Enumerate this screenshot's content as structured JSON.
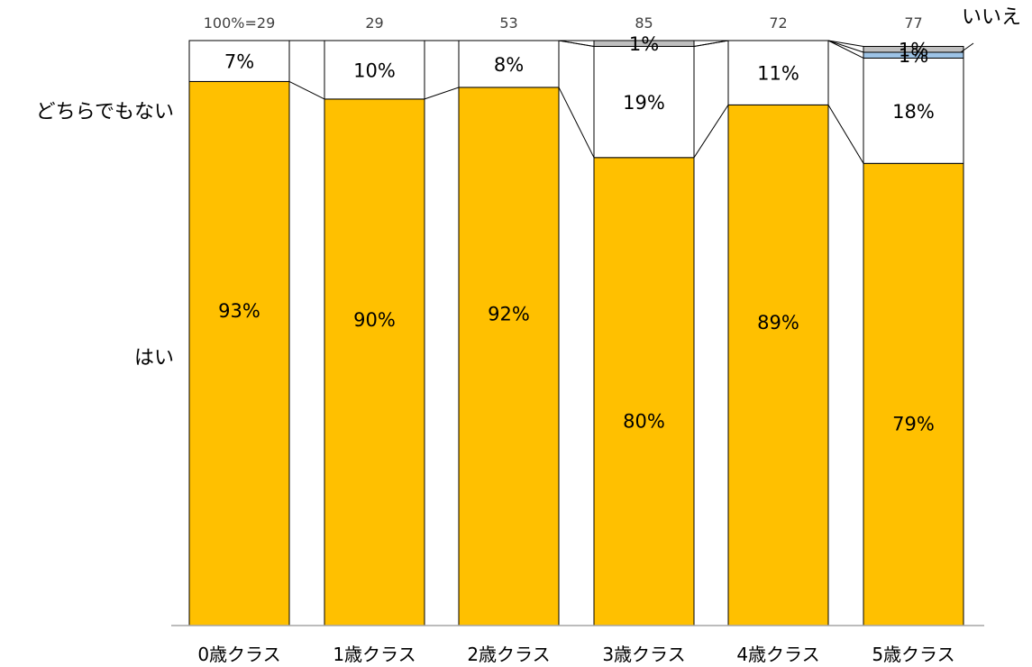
{
  "chart_data": {
    "type": "bar",
    "stacked": true,
    "normalized": true,
    "categories": [
      "0歳クラス",
      "1歳クラス",
      "2歳クラス",
      "3歳クラス",
      "4歳クラス",
      "5歳クラス"
    ],
    "n_labels": [
      "100%=29",
      "29",
      "53",
      "85",
      "72",
      "77"
    ],
    "series": [
      {
        "name": "はい",
        "values": [
          93,
          90,
          92,
          80,
          89,
          79
        ],
        "labels": [
          "93%",
          "90%",
          "92%",
          "80%",
          "89%",
          "79%"
        ],
        "color": "#FFC000"
      },
      {
        "name": "どちらでもない",
        "values": [
          7,
          10,
          8,
          19,
          11,
          18
        ],
        "labels": [
          "7%",
          "10%",
          "8%",
          "19%",
          "11%",
          "18%"
        ],
        "color": "#FFFFFF"
      },
      {
        "name": "",
        "values": [
          0,
          0,
          0,
          0,
          0,
          1
        ],
        "labels": [
          "",
          "",
          "",
          "",
          "",
          "1%"
        ],
        "color": "#9DC3E6"
      },
      {
        "name": "いいえ",
        "values": [
          0,
          0,
          0,
          1,
          0,
          1
        ],
        "labels": [
          "",
          "",
          "",
          "1%",
          "",
          "1%"
        ],
        "color": "#BFBFBF"
      }
    ],
    "ylim": [
      0,
      100
    ],
    "legend_placement": "left and top-right, inline series labels",
    "connector_lines": true
  }
}
